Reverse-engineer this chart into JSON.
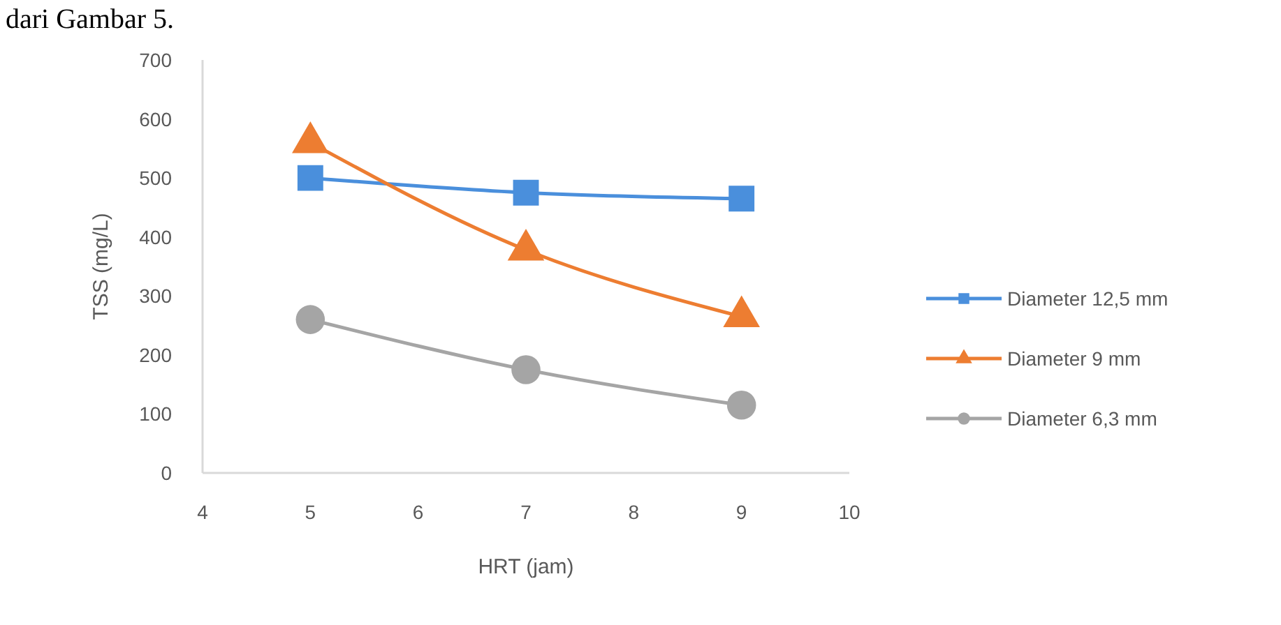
{
  "chart_data": {
    "type": "line",
    "xlabel": "HRT (jam)",
    "ylabel": "TSS (mg/L)",
    "annotations": [
      "dari Gambar 5."
    ],
    "x": [
      5,
      7,
      9
    ],
    "xlim": [
      4,
      10
    ],
    "xticks": [
      4,
      5,
      6,
      7,
      8,
      9,
      10
    ],
    "ylim": [
      0,
      700
    ],
    "yticks": [
      0,
      100,
      200,
      300,
      400,
      500,
      600,
      700
    ],
    "grid": false,
    "legend": "right",
    "series": [
      {
        "name": "Diameter 12,5 mm",
        "color": "#4a8fdc",
        "marker": "square",
        "values": [
          500,
          475,
          465
        ]
      },
      {
        "name": "Diameter 9 mm",
        "color": "#ed7d31",
        "marker": "triangle",
        "values": [
          560,
          378,
          265
        ]
      },
      {
        "name": "Diameter 6,3 mm",
        "color": "#a5a5a5",
        "marker": "circle",
        "values": [
          260,
          175,
          115
        ]
      }
    ]
  }
}
